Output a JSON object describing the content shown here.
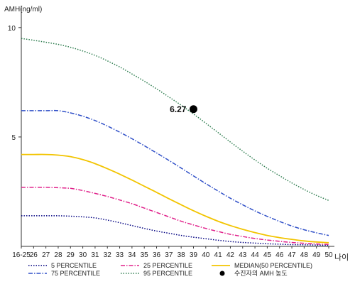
{
  "chart_data": {
    "type": "line",
    "ylabel": "AMH(ng/ml)",
    "xlabel": "나이",
    "x_tick_labels": [
      "16-25",
      "26",
      "27",
      "28",
      "29",
      "30",
      "31",
      "32",
      "33",
      "34",
      "35",
      "36",
      "37",
      "38",
      "39",
      "40",
      "41",
      "42",
      "43",
      "44",
      "45",
      "46",
      "47",
      "48",
      "49",
      "50"
    ],
    "y_ticks": [
      5,
      10
    ],
    "ylim": [
      0,
      11
    ],
    "grid": false,
    "legend_position": "bottom",
    "series": [
      {
        "name": "5 PERCENTILE",
        "color": "#000080",
        "style": "dotted",
        "values": [
          1.4,
          1.4,
          1.4,
          1.4,
          1.38,
          1.35,
          1.3,
          1.2,
          1.08,
          0.95,
          0.82,
          0.7,
          0.6,
          0.5,
          0.42,
          0.35,
          0.28,
          0.22,
          0.18,
          0.15,
          0.12,
          0.1,
          0.08,
          0.07,
          0.06,
          0.05
        ]
      },
      {
        "name": "25 PERCENTILE",
        "color": "#e0208a",
        "style": "dashdot",
        "values": [
          2.7,
          2.7,
          2.7,
          2.68,
          2.65,
          2.55,
          2.42,
          2.28,
          2.12,
          1.95,
          1.75,
          1.55,
          1.35,
          1.15,
          0.98,
          0.82,
          0.68,
          0.55,
          0.45,
          0.36,
          0.29,
          0.23,
          0.18,
          0.14,
          0.11,
          0.09
        ]
      },
      {
        "name": "MEDIAN(50 PERCENTILE)",
        "color": "#f2c400",
        "style": "solid",
        "values": [
          4.2,
          4.2,
          4.2,
          4.17,
          4.1,
          3.97,
          3.78,
          3.55,
          3.3,
          3.03,
          2.75,
          2.47,
          2.18,
          1.9,
          1.63,
          1.38,
          1.15,
          0.95,
          0.78,
          0.63,
          0.5,
          0.4,
          0.32,
          0.25,
          0.2,
          0.17
        ]
      },
      {
        "name": "75 PERCENTILE",
        "color": "#3050c8",
        "style": "dashdot",
        "values": [
          6.2,
          6.2,
          6.2,
          6.2,
          6.1,
          5.95,
          5.75,
          5.5,
          5.22,
          4.92,
          4.6,
          4.27,
          3.93,
          3.58,
          3.22,
          2.87,
          2.53,
          2.2,
          1.9,
          1.62,
          1.37,
          1.14,
          0.93,
          0.76,
          0.62,
          0.5
        ]
      },
      {
        "name": "95 PERCENTILE",
        "color": "#2e7d4f",
        "style": "dotted",
        "values": [
          9.5,
          9.42,
          9.33,
          9.23,
          9.1,
          8.93,
          8.73,
          8.48,
          8.2,
          7.88,
          7.55,
          7.2,
          6.83,
          6.45,
          6.05,
          5.63,
          5.2,
          4.77,
          4.35,
          3.95,
          3.57,
          3.23,
          2.9,
          2.6,
          2.33,
          2.1
        ]
      }
    ],
    "marker": {
      "name": "수진자의 AMH 농도",
      "x_label": "39",
      "y": 6.27,
      "label": "6.27",
      "color": "#000000"
    }
  }
}
